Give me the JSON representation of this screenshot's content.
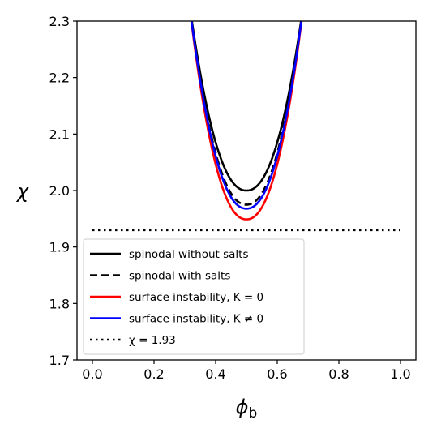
{
  "chart_data": {
    "type": "line",
    "xlabel": "ϕ_b",
    "ylabel": "χ",
    "xlim": [
      -0.05,
      1.05
    ],
    "ylim": [
      1.7,
      2.3
    ],
    "x_ticks": [
      "0.0",
      "0.2",
      "0.4",
      "0.6",
      "0.8",
      "1.0"
    ],
    "y_ticks": [
      "1.7",
      "1.8",
      "1.9",
      "2.0",
      "2.1",
      "2.2",
      "2.3"
    ],
    "grid": false,
    "legend_position": "lower-left",
    "series": [
      {
        "name": "spinodal without salts",
        "color": "#000000",
        "style": "solid",
        "min_x": 0.5,
        "min_y": 2.0
      },
      {
        "name": "spinodal with salts",
        "color": "#000000",
        "style": "dashed",
        "min_x": 0.5,
        "min_y": 1.975
      },
      {
        "name": "surface instability, K = 0",
        "color": "#ff0000",
        "style": "solid",
        "min_x": 0.5,
        "min_y": 1.949
      },
      {
        "name": "surface instability, K ≠ 0",
        "color": "#0000ff",
        "style": "solid",
        "min_x": 0.5,
        "min_y": 1.968
      },
      {
        "name": "χ = 1.93",
        "color": "#000000",
        "style": "dotted",
        "x": [
          0.0,
          1.0
        ],
        "y": [
          1.93,
          1.93
        ]
      }
    ]
  }
}
